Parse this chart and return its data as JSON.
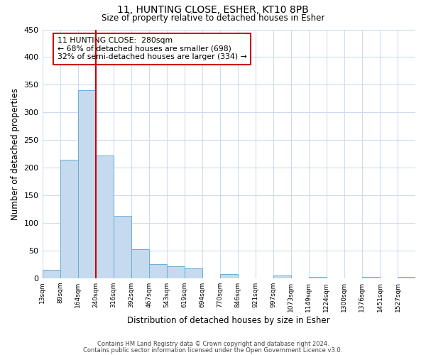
{
  "title": "11, HUNTING CLOSE, ESHER, KT10 8PB",
  "subtitle": "Size of property relative to detached houses in Esher",
  "xlabel": "Distribution of detached houses by size in Esher",
  "ylabel": "Number of detached properties",
  "bar_color": "#c5d9ef",
  "bar_edge_color": "#6aaed6",
  "background_color": "#ffffff",
  "grid_color": "#ccdcee",
  "bin_labels": [
    "13sqm",
    "89sqm",
    "164sqm",
    "240sqm",
    "316sqm",
    "392sqm",
    "467sqm",
    "543sqm",
    "619sqm",
    "694sqm",
    "770sqm",
    "846sqm",
    "921sqm",
    "997sqm",
    "1073sqm",
    "1149sqm",
    "1224sqm",
    "1300sqm",
    "1376sqm",
    "1451sqm",
    "1527sqm"
  ],
  "bin_edges_numeric": [
    0,
    1,
    2,
    3,
    4,
    5,
    6,
    7,
    8,
    9,
    10,
    11,
    12,
    13,
    14,
    15,
    16,
    17,
    18,
    19,
    20,
    21
  ],
  "counts": [
    15,
    215,
    340,
    222,
    113,
    52,
    25,
    22,
    18,
    0,
    8,
    0,
    0,
    5,
    0,
    3,
    0,
    0,
    2,
    0,
    2
  ],
  "vline_index": 3.0,
  "vline_color": "#cc0000",
  "annotation_text": "11 HUNTING CLOSE:  280sqm\n← 68% of detached houses are smaller (698)\n32% of semi-detached houses are larger (334) →",
  "annotation_box_color": "#ffffff",
  "annotation_box_edge_color": "#cc0000",
  "ylim": [
    0,
    450
  ],
  "yticks": [
    0,
    50,
    100,
    150,
    200,
    250,
    300,
    350,
    400,
    450
  ],
  "footer_line1": "Contains HM Land Registry data © Crown copyright and database right 2024.",
  "footer_line2": "Contains public sector information licensed under the Open Government Licence v3.0."
}
